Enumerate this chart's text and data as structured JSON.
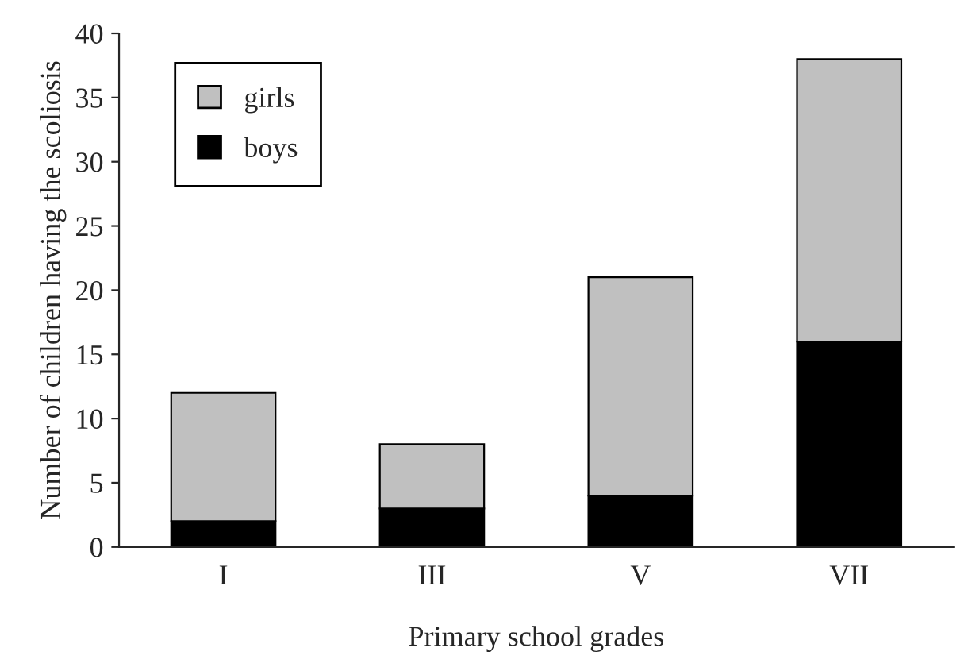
{
  "chart_data": {
    "type": "bar",
    "stacked": true,
    "xlabel": "Primary school grades",
    "ylabel": "Number of children having the scoliosis",
    "categories": [
      "I",
      "III",
      "V",
      "VII"
    ],
    "series": [
      {
        "name": "boys",
        "color": "#000000",
        "values": [
          2,
          3,
          4,
          16
        ]
      },
      {
        "name": "girls",
        "color": "#c0c0c0",
        "values": [
          10,
          5,
          17,
          22
        ]
      }
    ],
    "ylim": [
      0,
      40
    ],
    "yticks": [
      0,
      5,
      10,
      15,
      20,
      25,
      30,
      35,
      40
    ],
    "grid": false,
    "legend": "top left"
  }
}
